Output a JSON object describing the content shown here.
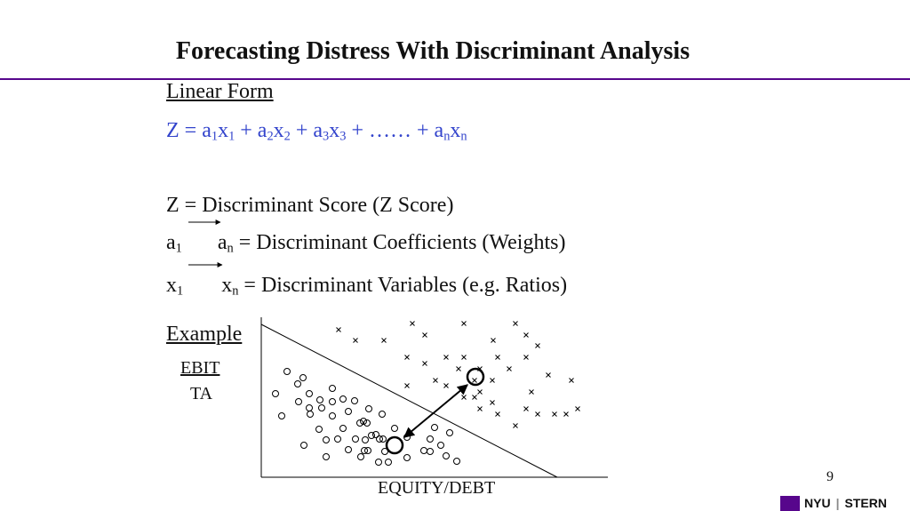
{
  "header": {
    "title": "Forecasting Distress With Discriminant Analysis"
  },
  "linear_form": {
    "heading": "Linear Form",
    "formula": [
      {
        "base": "Z = a",
        "sub": "1"
      },
      {
        "base": "x",
        "sub": "1"
      },
      {
        "base": " + a",
        "sub": "2"
      },
      {
        "base": "x",
        "sub": "2"
      },
      {
        "base": " + a",
        "sub": "3"
      },
      {
        "base": "x",
        "sub": "3"
      },
      {
        "base": " + …… + a",
        "sub": "n"
      },
      {
        "base": "x",
        "sub": "n"
      }
    ]
  },
  "definitions": {
    "score": "Z = Discriminant Score (Z Score)",
    "coefficients": {
      "start": {
        "base": "a",
        "sub": "1"
      },
      "end": {
        "base": "a",
        "sub": "n"
      },
      "text": " = Discriminant Coefficients (Weights)"
    },
    "variables": {
      "start": {
        "base": "x",
        "sub": "1"
      },
      "end": {
        "base": "x",
        "sub": "n"
      },
      "text": " = Discriminant Variables (e.g. Ratios)"
    }
  },
  "example": {
    "heading": "Example",
    "y_label_top": "EBIT",
    "y_label_bottom": "TA",
    "x_label": "EQUITY/DEBT"
  },
  "footer": {
    "page_number": "9",
    "logo_left": "NYU",
    "logo_right": "STERN"
  }
}
